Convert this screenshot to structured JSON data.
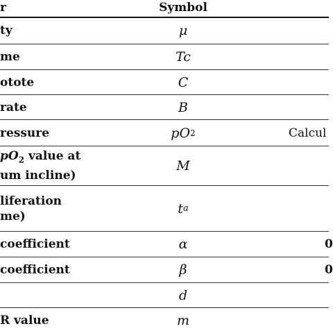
{
  "header": {
    "col1": "r",
    "col2": "Symbol"
  },
  "rows": [
    {
      "param": "ty",
      "symbol": "μ",
      "extra": ""
    },
    {
      "param": "me",
      "symbol": "Tc",
      "extra": ""
    },
    {
      "param": "otote",
      "symbol": "C",
      "extra": ""
    },
    {
      "param": "rate",
      "symbol": "B",
      "extra": ""
    },
    {
      "param": "ressure",
      "symbol": "pO",
      "symbol_sub": "2",
      "extra": "Calcul"
    },
    {
      "param_prefix": "pO",
      "param_sub": "2",
      "param_suffix": " value at",
      "param_line2": "um incline)",
      "symbol": "M",
      "extra": ""
    },
    {
      "param": "liferation",
      "param_line2": "me)",
      "symbol": "t",
      "symbol_sub": "a",
      "extra": ""
    },
    {
      "param": "coefficient",
      "symbol": "α",
      "extra": "0"
    },
    {
      "param": "coefficient",
      "symbol": "β",
      "extra": "0"
    },
    {
      "param": "",
      "symbol": "d",
      "extra": ""
    },
    {
      "param": "R value",
      "symbol": "m",
      "extra": ""
    }
  ]
}
